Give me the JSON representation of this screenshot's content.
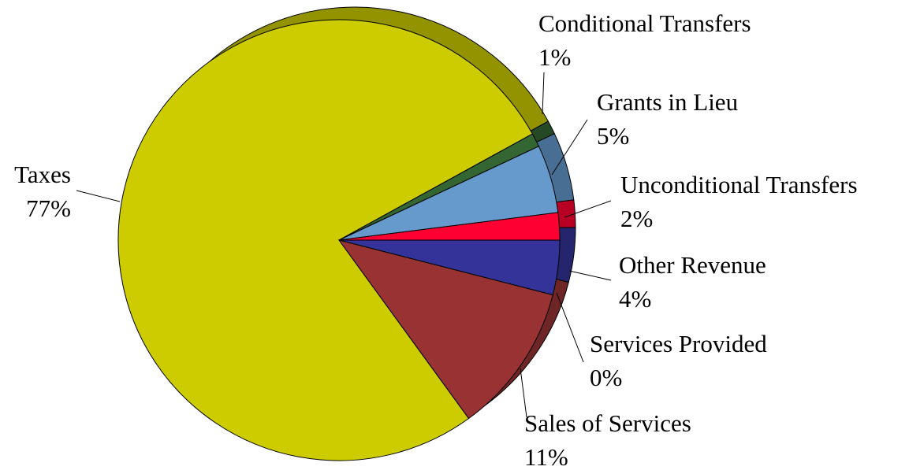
{
  "chart_data": {
    "type": "pie",
    "categories": [
      "Taxes",
      "Conditional Transfers",
      "Grants in Lieu",
      "Unconditional Transfers",
      "Other Revenue",
      "Services Provided",
      "Sales of Services"
    ],
    "values": [
      77,
      1,
      5,
      2,
      4,
      0,
      11
    ],
    "value_labels": [
      "77%",
      "1%",
      "5%",
      "2%",
      "4%",
      "0%",
      "11%"
    ],
    "colors": [
      "#cccc00",
      "#336633",
      "#6699cc",
      "#ff0033",
      "#333399",
      "#cc9966",
      "#993333"
    ]
  }
}
